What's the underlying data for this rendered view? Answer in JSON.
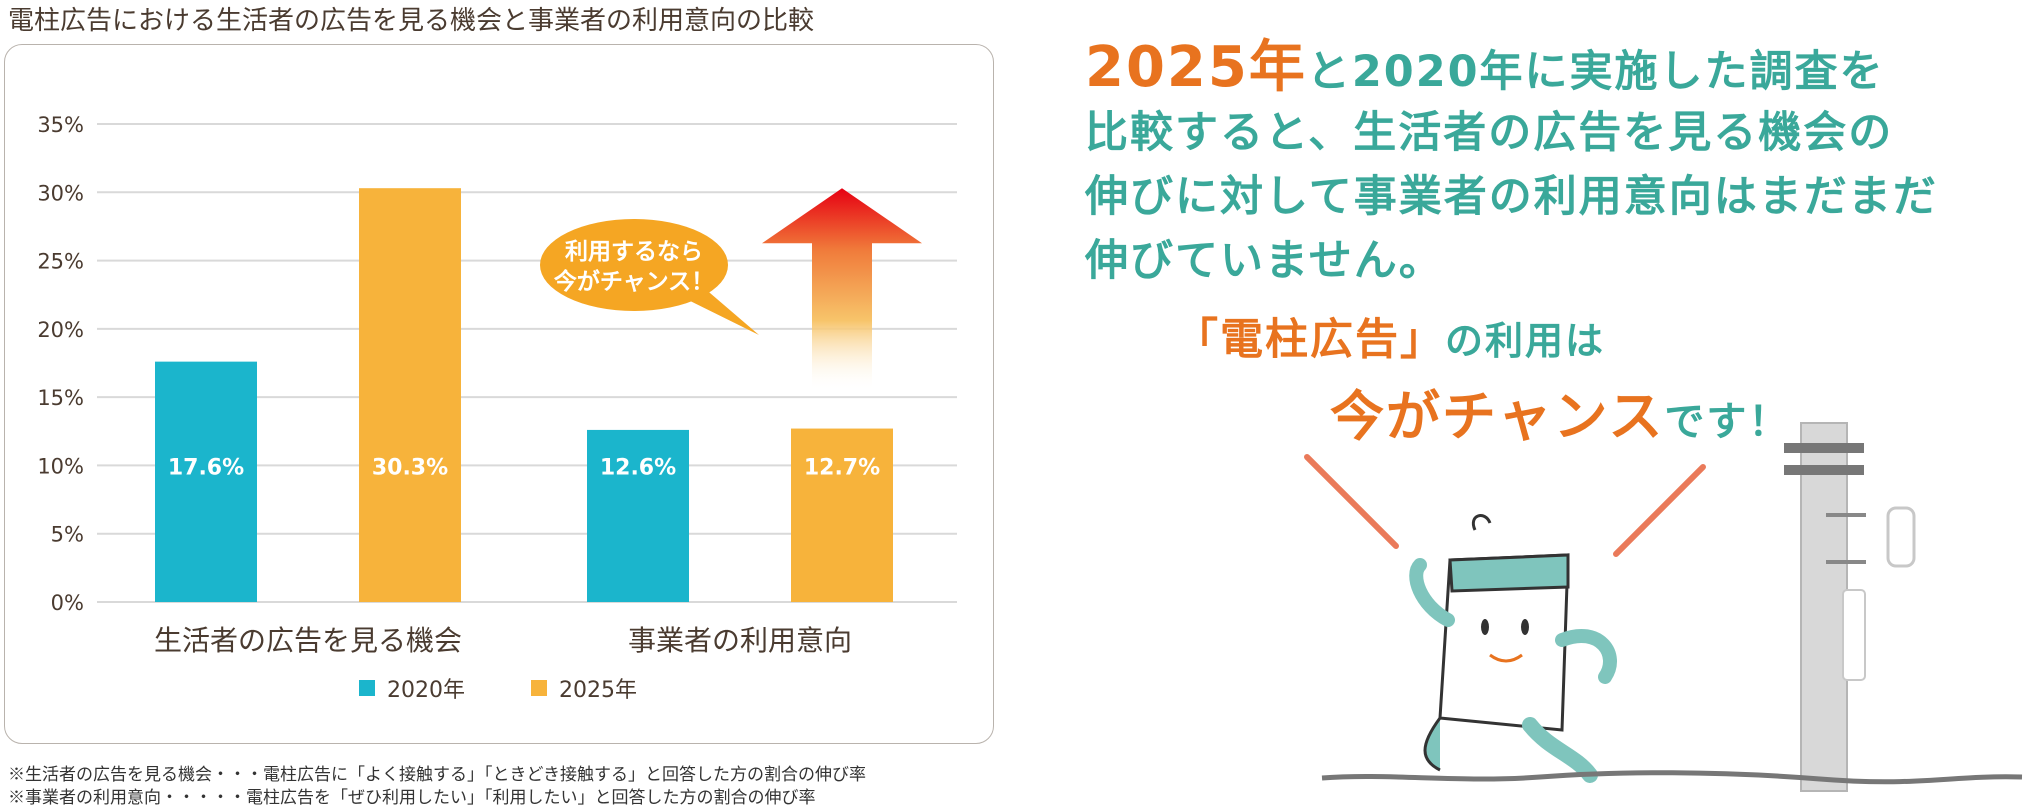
{
  "title": "電柱広告における生活者の広告を見る機会と事業者の利用意向の比較",
  "colors": {
    "y2020": "#1bb5cc",
    "y2025": "#f7b33b",
    "arrow": "#e60012",
    "grid": "#d9d9d9",
    "bubble": "#f5a623"
  },
  "chart_data": {
    "type": "bar",
    "categories": [
      "生活者の広告を見る機会",
      "事業者の利用意向"
    ],
    "series": [
      {
        "name": "2020年",
        "values": [
          17.6,
          12.6
        ],
        "labels": [
          "17.6%",
          "12.6%"
        ]
      },
      {
        "name": "2025年",
        "values": [
          30.3,
          12.7
        ],
        "labels": [
          "30.3%",
          "12.7%"
        ]
      }
    ],
    "ylim": [
      0,
      35
    ],
    "yticks": [
      {
        "value": 0,
        "label": "0%"
      },
      {
        "value": 5,
        "label": "5%"
      },
      {
        "value": 10,
        "label": "10%"
      },
      {
        "value": 15,
        "label": "15%"
      },
      {
        "value": 20,
        "label": "20%"
      },
      {
        "value": 25,
        "label": "25%"
      },
      {
        "value": 30,
        "label": "30%"
      },
      {
        "value": 35,
        "label": "35%"
      }
    ],
    "grid": true,
    "legend": "bottom-center",
    "annotation": {
      "bubble_lines": [
        "利用するなら",
        "今がチャンス！"
      ],
      "arrow_from": 12.7,
      "arrow_to": 30.3
    }
  },
  "footnotes": [
    "※生活者の広告を見る機会・・・電柱広告に「よく接触する」「ときどき接触する」と回答した方の割合の伸び率",
    "※事業者の利用意向・・・・・電柱広告を「ぜひ利用したい」「利用したい」と回答した方の割合の伸び率"
  ],
  "message": {
    "line1_year1": "2025年",
    "line1_rest": "と2020年に実施した調査を",
    "line2": "比較すると、生活者の広告を見る機会の",
    "line3": "伸びに対して事業者の利用意向はまだまだ",
    "line4": "伸びていません。",
    "cta_brand": "「電柱広告」",
    "cta_mid": "の利用は",
    "cta_big": "今がチャンス",
    "cta_end": "です！"
  }
}
